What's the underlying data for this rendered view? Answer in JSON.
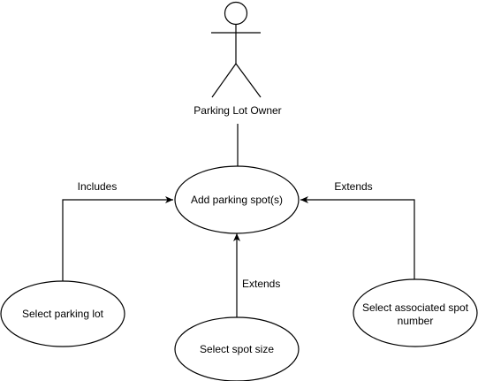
{
  "actor": {
    "label": "Parking Lot Owner"
  },
  "use_cases": {
    "add_parking_spots": "Add parking spot(s)",
    "select_parking_lot": "Select parking lot",
    "select_spot_size": "Select spot size",
    "select_associated_spot_number_line1": "Select associated spot",
    "select_associated_spot_number_line2": "number"
  },
  "relations": {
    "includes_label": "Includes",
    "extends_spot_size_label": "Extends",
    "extends_spot_number_label": "Extends"
  },
  "colors": {
    "stroke": "#000000",
    "background": "#ffffff",
    "text": "#000000"
  }
}
